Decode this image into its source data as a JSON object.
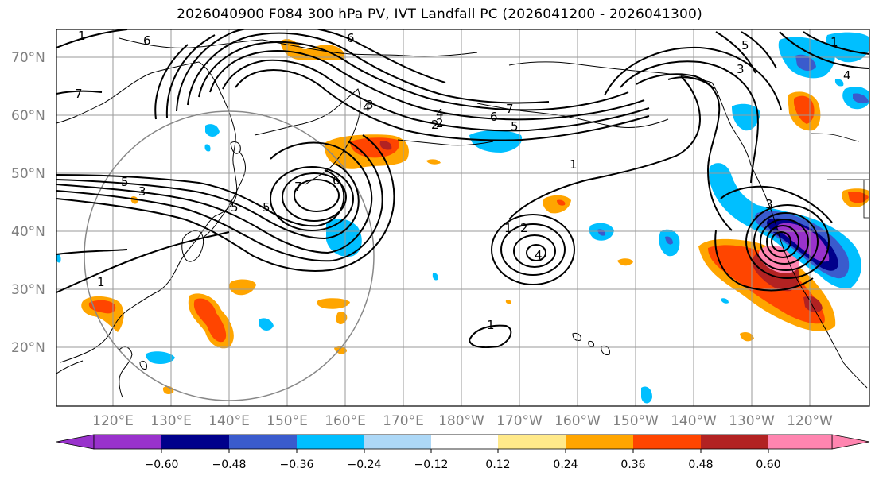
{
  "title": "2026040900 F084 300 hPa PV, IVT Landfall PC (2026041200 - 2026041300)",
  "map": {
    "lat_ticks": [
      "70°N",
      "60°N",
      "50°N",
      "40°N",
      "30°N",
      "20°N"
    ],
    "lon_ticks": [
      "120°E",
      "130°E",
      "140°E",
      "150°E",
      "160°E",
      "170°E",
      "180°W",
      "170°W",
      "160°W",
      "150°W",
      "140°W",
      "130°W",
      "120°W"
    ],
    "contour_labels": [
      "1",
      "6",
      "7",
      "5",
      "3",
      "4",
      "2",
      "6",
      "5",
      "4",
      "2",
      "7",
      "6",
      "5",
      "1",
      "7",
      "3",
      "5",
      "1",
      "2",
      "4",
      "1",
      "5",
      "3",
      "1",
      "4",
      "3",
      "6",
      "1"
    ]
  },
  "colorbar": {
    "colors": [
      "#9932cc",
      "#00008b",
      "#3a5bcd",
      "#00bfff",
      "#add8f7",
      "#ffffff",
      "#ffe98a",
      "#ffa500",
      "#ff4500",
      "#b22222",
      "#ff85b0"
    ],
    "tick_labels": [
      "−0.60",
      "−0.48",
      "−0.36",
      "−0.24",
      "−0.12",
      "0.12",
      "0.24",
      "0.36",
      "0.48",
      "0.60"
    ]
  }
}
